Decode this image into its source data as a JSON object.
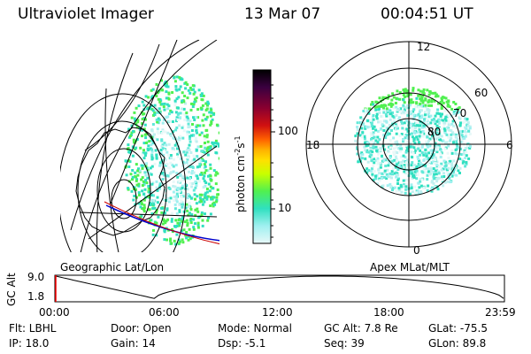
{
  "header": {
    "instrument": "Ultraviolet Imager",
    "date": "13 Mar 07",
    "time": "00:04:51 UT"
  },
  "left_panel": {
    "caption": "Geographic Lat/Lon"
  },
  "right_panel": {
    "caption": "Apex MLat/MLT",
    "mlt_labels": [
      "12",
      "18",
      "6",
      "0"
    ],
    "mlat_labels": [
      "60",
      "70",
      "80"
    ]
  },
  "colorbar": {
    "unit_label": "photon cm",
    "unit_sup1": "-2",
    "unit_mid": "s",
    "unit_sup2": "-1",
    "tick_100": "100",
    "tick_10": "10",
    "scale": "log",
    "colors": [
      "#000000",
      "#3a0040",
      "#8a0030",
      "#d01010",
      "#ff6000",
      "#ffb000",
      "#ffe000",
      "#c8ff00",
      "#50f050",
      "#30e0c0",
      "#a0f0f0",
      "#e8f8f8"
    ]
  },
  "altitude_plot": {
    "ylabel": "GC Alt",
    "ytick_top": "9.0",
    "ytick_bottom": "1.8",
    "xticks": [
      "00:00",
      "06:00",
      "12:00",
      "18:00",
      "23:59"
    ],
    "current_marker_color": "#ff0000"
  },
  "status": {
    "filter": "Flt: LBHL",
    "ip": "IP: 18.0",
    "door": "Door: Open",
    "gain": "Gain: 14",
    "mode": "Mode: Normal",
    "dsp": "Dsp:   -5.1",
    "gc_alt": "GC Alt: 7.8 Re",
    "seq": "Seq: 39",
    "glat": "GLat: -75.5",
    "glon": "GLon:  89.8"
  }
}
